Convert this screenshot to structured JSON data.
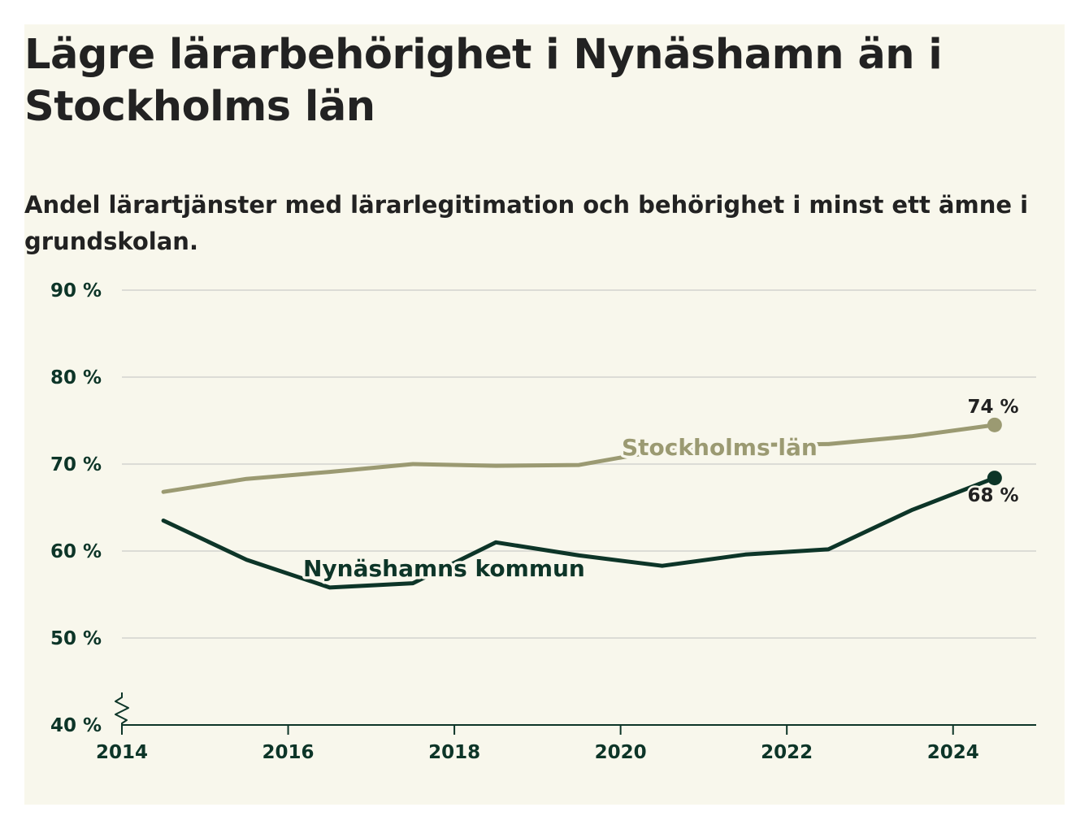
{
  "title": "Lägre lärarbehörighet i Nynäshamn än i Stockholms län",
  "subtitle": "Andel lärartjänster med lärarlegitimation och behörighet i minst ett ämne i grundskolan.",
  "colors": {
    "background": "#f8f7ec",
    "gridline": "#dcdcd6",
    "axis": "#0d3528",
    "stockholm": "#9b9a72",
    "nynashamn": "#0d3528",
    "text": "#222222"
  },
  "chart_data": {
    "type": "line",
    "title": "Lägre lärarbehörighet i Nynäshamn än i Stockholms län",
    "subtitle": "Andel lärartjänster med lärarlegitimation och behörighet i minst ett ämne i grundskolan.",
    "x": [
      2014.5,
      2015.5,
      2016.5,
      2017.5,
      2018.5,
      2019.5,
      2020.5,
      2021.5,
      2022.5,
      2023.5,
      2024.5
    ],
    "xlim": [
      2014,
      2025
    ],
    "ylim": [
      40,
      90
    ],
    "x_ticks": [
      2014,
      2016,
      2018,
      2020,
      2022,
      2024
    ],
    "x_tick_labels": [
      "2014",
      "2016",
      "2018",
      "2020",
      "2022",
      "2024"
    ],
    "y_ticks": [
      40,
      50,
      60,
      70,
      80,
      90
    ],
    "y_tick_labels": [
      "40 %",
      "50 %",
      "60 %",
      "70 %",
      "80 %",
      "90 %"
    ],
    "y_axis_break": true,
    "grid": true,
    "series": [
      {
        "name": "Stockholms län",
        "color": "#9b9a72",
        "values": [
          66.8,
          68.3,
          69.1,
          70.0,
          69.8,
          69.9,
          71.6,
          72.2,
          72.3,
          73.2,
          74.5
        ],
        "end_label": "74 %"
      },
      {
        "name": "Nynäshamns kommun",
        "color": "#0d3528",
        "values": [
          63.5,
          59.0,
          55.8,
          56.3,
          61.0,
          59.5,
          58.3,
          59.6,
          60.2,
          64.7,
          68.4
        ],
        "end_label": "68 %"
      }
    ]
  }
}
